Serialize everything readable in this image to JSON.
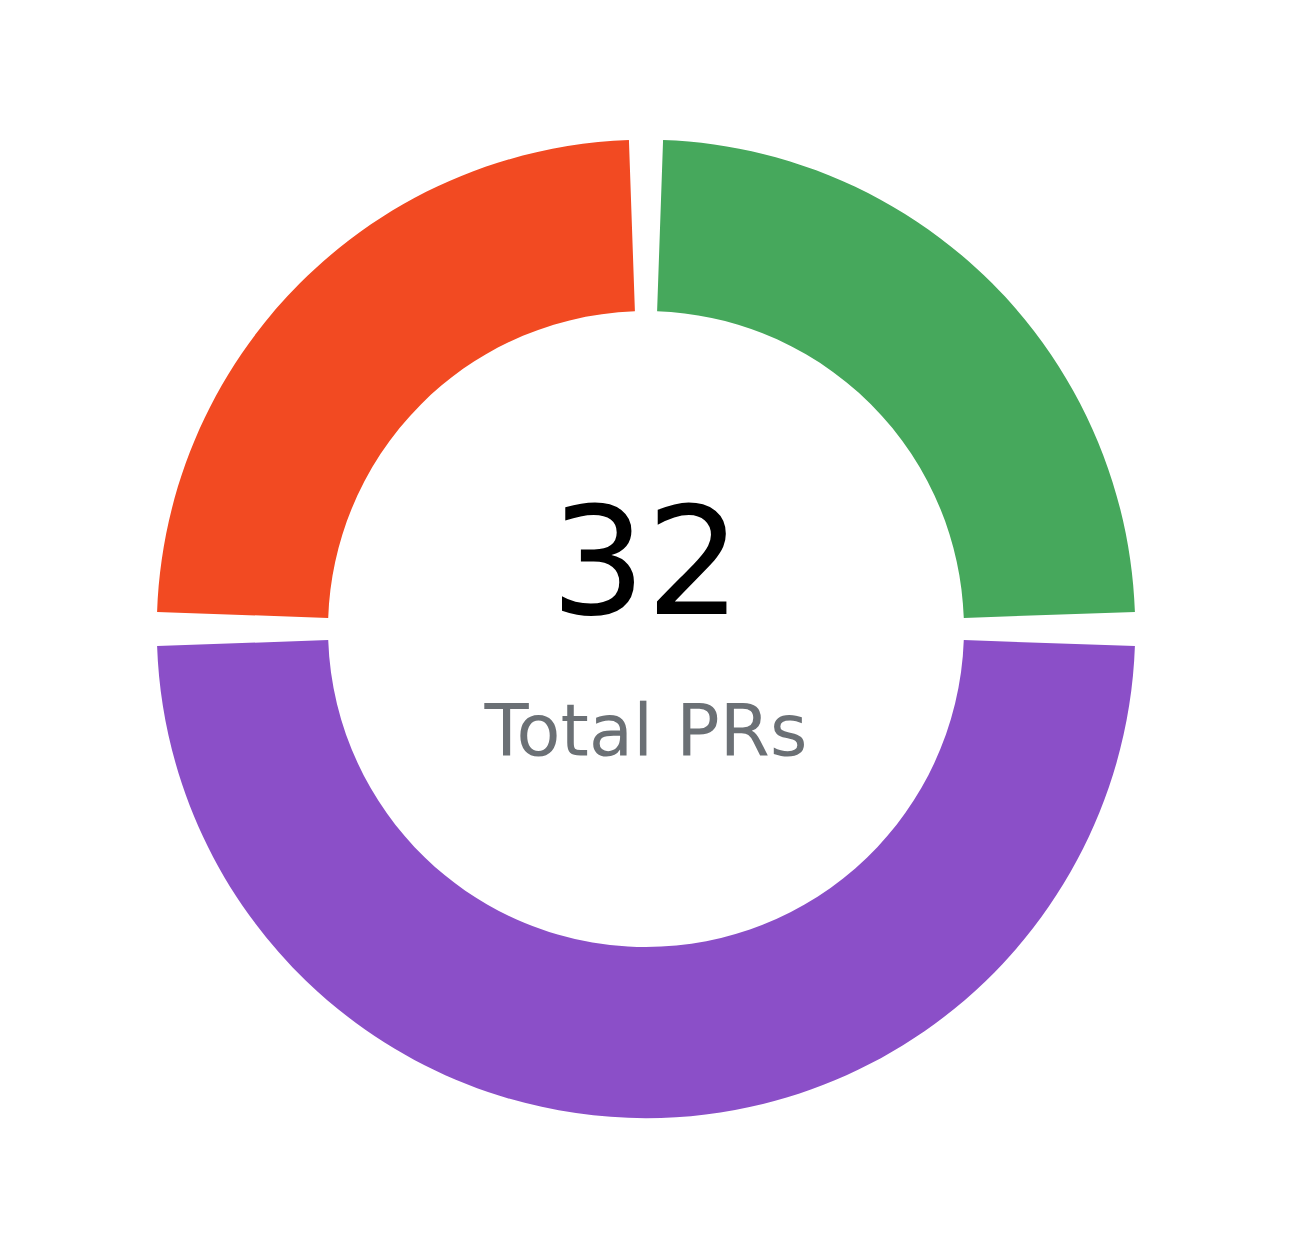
{
  "chart_data": {
    "type": "donut",
    "categories": [
      null,
      null,
      null
    ],
    "values": [
      25,
      50,
      25
    ],
    "colors": [
      "#46a85c",
      "#8b4fc8",
      "#f24a22"
    ],
    "annotations": [
      "32",
      "Total PRs"
    ]
  }
}
